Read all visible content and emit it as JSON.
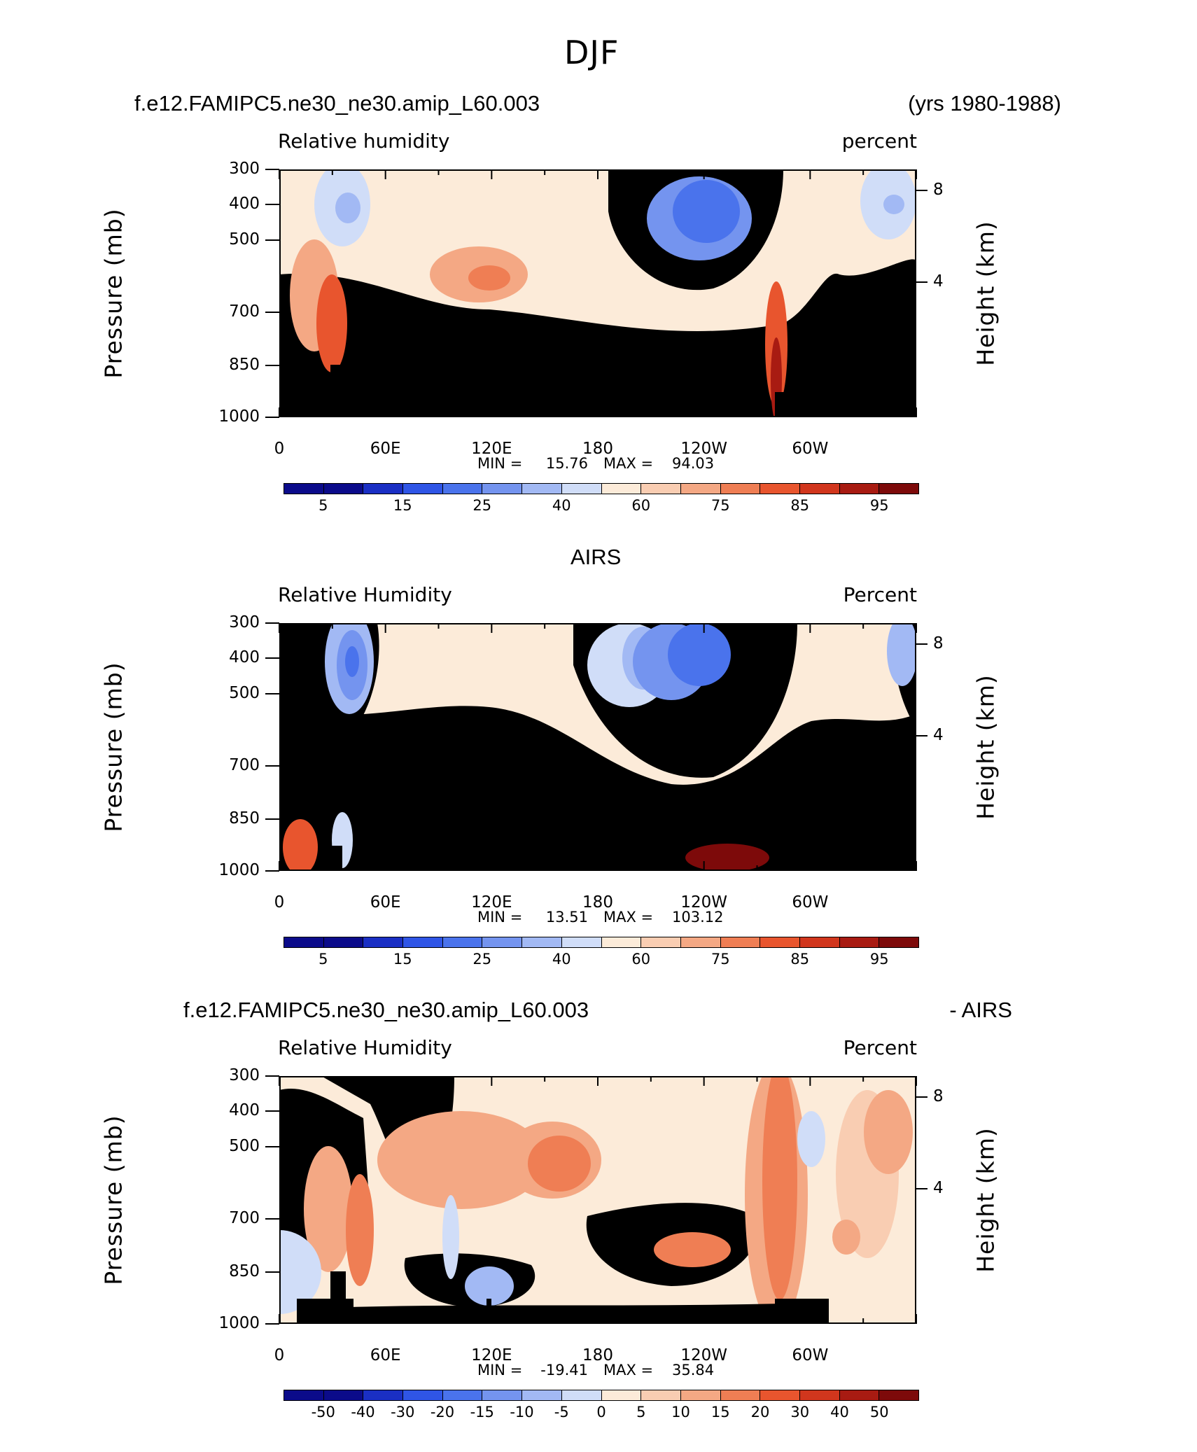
{
  "suptitle": "DJF",
  "chart_data": [
    {
      "type": "heatmap",
      "title_left": "f.e12.FAMIPC5.ne30_ne30.amip_L60.003",
      "title_right": "(yrs 1980-1988)",
      "variable": "Relative humidity",
      "units": "percent",
      "ylabel": "Pressure (mb)",
      "ylabel_right": "Height (km)",
      "x_ticks": [
        "0",
        "60E",
        "120E",
        "180",
        "120W",
        "60W"
      ],
      "y_ticks": [
        "300",
        "400",
        "500",
        "700",
        "850",
        "1000"
      ],
      "y_ticks_right": [
        "8",
        "4"
      ],
      "min_label": "MIN =",
      "min_value": "15.76",
      "max_label": "MAX =",
      "max_value": "94.03",
      "colorbar_levels": [
        "5",
        "15",
        "25",
        "40",
        "60",
        "75",
        "85",
        "95"
      ]
    },
    {
      "type": "heatmap",
      "title_center": "AIRS",
      "variable": "Relative Humidity",
      "units": "Percent",
      "ylabel": "Pressure (mb)",
      "ylabel_right": "Height (km)",
      "x_ticks": [
        "0",
        "60E",
        "120E",
        "180",
        "120W",
        "60W"
      ],
      "y_ticks": [
        "300",
        "400",
        "500",
        "700",
        "850",
        "1000"
      ],
      "y_ticks_right": [
        "8",
        "4"
      ],
      "min_label": "MIN =",
      "min_value": "13.51",
      "max_label": "MAX =",
      "max_value": "103.12",
      "colorbar_levels": [
        "5",
        "15",
        "25",
        "40",
        "60",
        "75",
        "85",
        "95"
      ]
    },
    {
      "type": "heatmap",
      "title_left": "f.e12.FAMIPC5.ne30_ne30.amip_L60.003",
      "title_right": "- AIRS",
      "variable": "Relative Humidity",
      "units": "Percent",
      "ylabel": "Pressure (mb)",
      "ylabel_right": "Height (km)",
      "x_ticks": [
        "0",
        "60E",
        "120E",
        "180",
        "120W",
        "60W"
      ],
      "y_ticks": [
        "300",
        "400",
        "500",
        "700",
        "850",
        "1000"
      ],
      "y_ticks_right": [
        "8",
        "4"
      ],
      "min_label": "MIN =",
      "min_value": "-19.41",
      "max_label": "MAX =",
      "max_value": "35.84",
      "colorbar_levels": [
        "-50",
        "-40",
        "-30",
        "-20",
        "-15",
        "-10",
        "-5",
        "0",
        "5",
        "10",
        "15",
        "20",
        "30",
        "40",
        "50"
      ]
    }
  ],
  "colormap": [
    "#0b0b8a",
    "#1a2fc4",
    "#2f55e6",
    "#4a73ec",
    "#7494ef",
    "#a2b9f4",
    "#d0ddf8",
    "#fcebd9",
    "#f9cdb2",
    "#f4a884",
    "#ef7e54",
    "#e8552e",
    "#d1361d",
    "#a81b12",
    "#7d0a0a"
  ]
}
